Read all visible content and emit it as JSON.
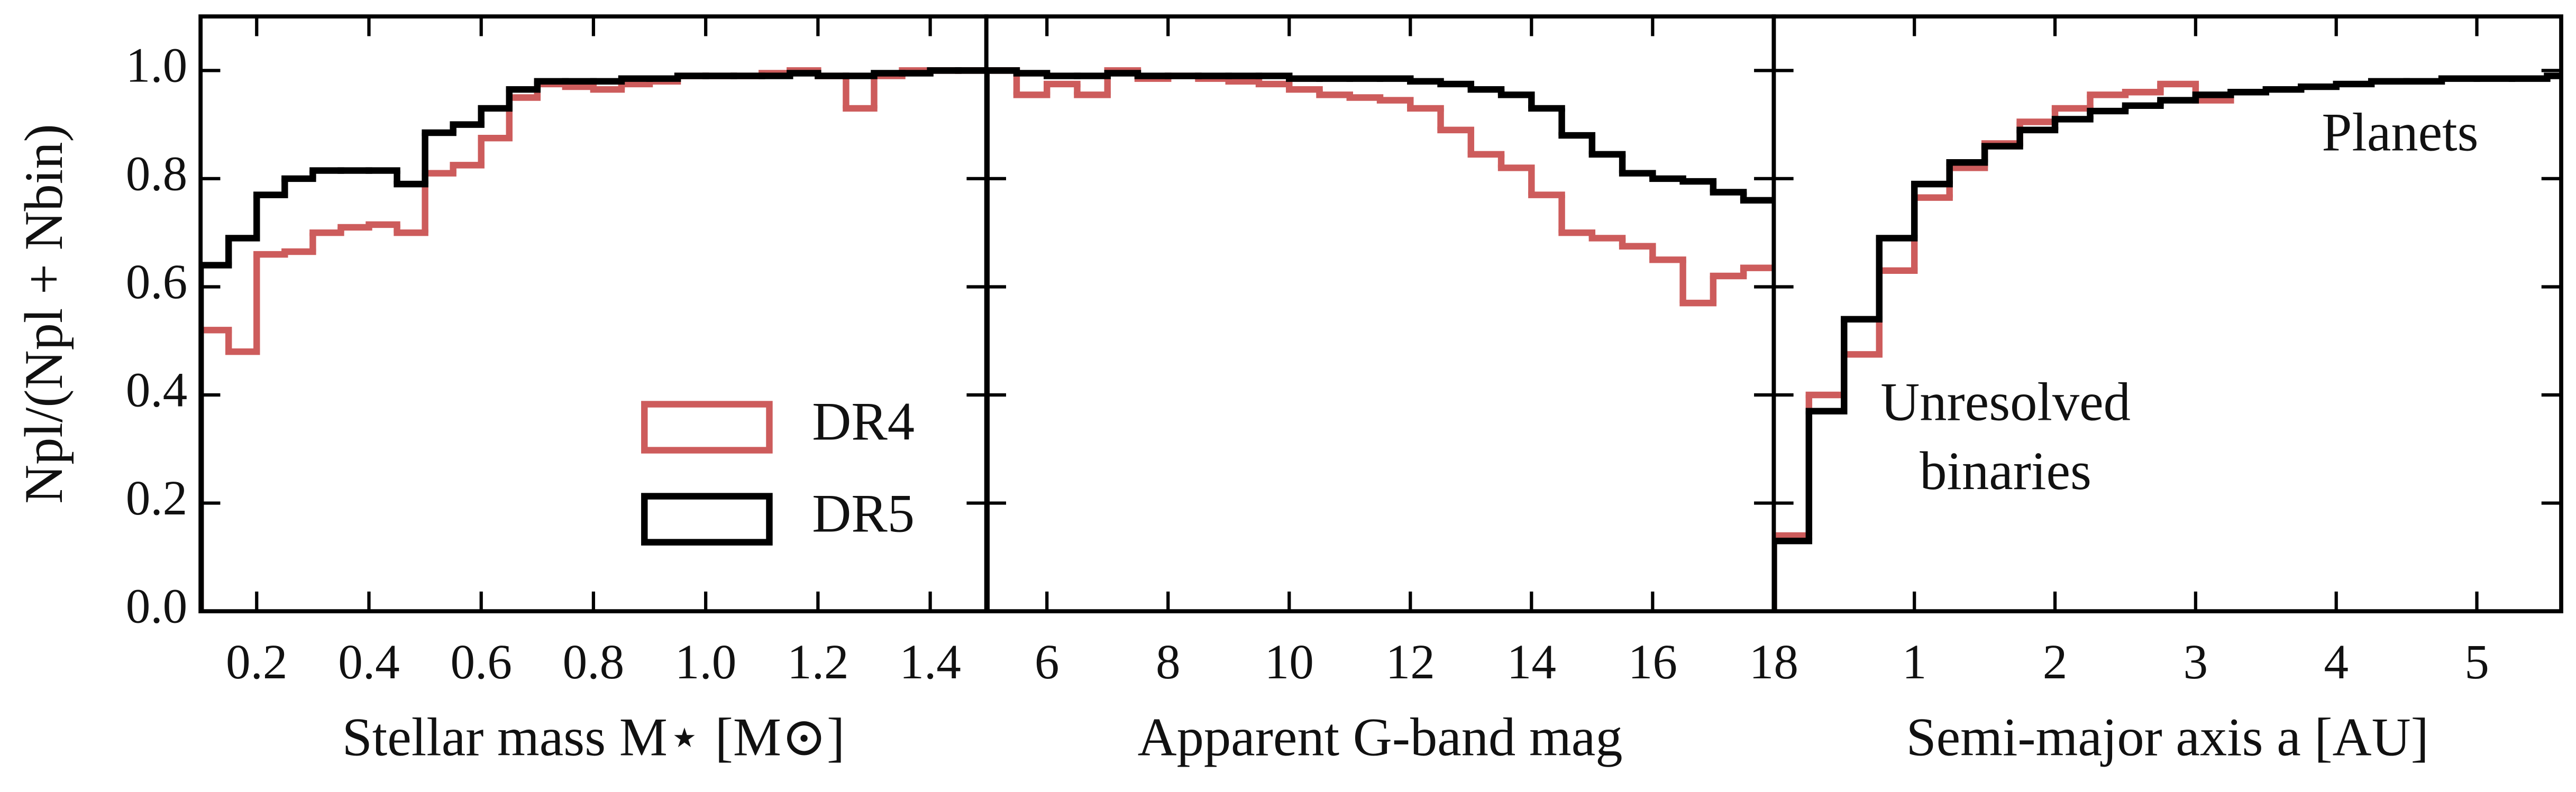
{
  "chart_data": [
    {
      "type": "histogram",
      "xlabel": "Stellar mass M⋆ [M⊙]",
      "ylabel": "Npl/(Npl + Nbin)",
      "xlim": [
        0.1,
        1.5
      ],
      "xticks": [
        0.2,
        0.4,
        0.6,
        0.8,
        {
          "value": 1,
          "label": "1.0"
        },
        1.2,
        1.4
      ],
      "ylim": [
        0,
        1.1
      ],
      "yticks": [
        {
          "value": 0,
          "label": "0.0"
        },
        0.2,
        0.4,
        0.6,
        0.8,
        {
          "value": 1,
          "label": "1.0"
        }
      ],
      "legend": "lower right",
      "series": [
        {
          "name": "DR4",
          "color": "#cd5c5c",
          "bins": [
            0.1,
            0.15,
            0.2,
            0.25,
            0.3,
            0.35,
            0.4,
            0.45,
            0.5,
            0.55,
            0.6,
            0.65,
            0.7,
            0.75,
            0.8,
            0.85,
            0.9,
            0.95,
            1.0,
            1.05,
            1.1,
            1.15,
            1.2,
            1.25,
            1.3,
            1.35,
            1.4,
            1.45,
            1.5
          ],
          "values": [
            0.52,
            0.48,
            0.66,
            0.665,
            0.7,
            0.71,
            0.715,
            0.7,
            0.81,
            0.825,
            0.875,
            0.95,
            0.975,
            0.97,
            0.965,
            0.975,
            0.98,
            0.99,
            0.99,
            0.99,
            0.995,
            1.0,
            0.99,
            0.93,
            0.99,
            1.0,
            1.0,
            1.0
          ]
        },
        {
          "name": "DR5",
          "color": "#000000",
          "bins": [
            0.1,
            0.15,
            0.2,
            0.25,
            0.3,
            0.35,
            0.4,
            0.45,
            0.5,
            0.55,
            0.6,
            0.65,
            0.7,
            0.75,
            0.8,
            0.85,
            0.9,
            0.95,
            1.0,
            1.05,
            1.1,
            1.15,
            1.2,
            1.25,
            1.3,
            1.35,
            1.4,
            1.45,
            1.5
          ],
          "values": [
            0.64,
            0.69,
            0.77,
            0.8,
            0.815,
            0.815,
            0.815,
            0.79,
            0.885,
            0.9,
            0.93,
            0.965,
            0.98,
            0.98,
            0.98,
            0.985,
            0.985,
            0.99,
            0.99,
            0.99,
            0.99,
            0.995,
            0.99,
            0.99,
            0.995,
            0.995,
            1.0,
            1.0
          ]
        }
      ]
    },
    {
      "type": "histogram",
      "xlabel": "Apparent G-band mag",
      "xlim": [
        5,
        18
      ],
      "xticks": [
        6,
        8,
        10,
        12,
        14,
        16,
        18
      ],
      "ylim": [
        0,
        1.1
      ],
      "yticks": [
        0,
        0.2,
        0.4,
        0.6,
        0.8,
        1
      ],
      "series": [
        {
          "name": "DR4",
          "color": "#cd5c5c",
          "bins": [
            5,
            5.5,
            6,
            6.5,
            7,
            7.5,
            8,
            8.5,
            9,
            9.5,
            10,
            10.5,
            11,
            11.5,
            12,
            12.5,
            13,
            13.5,
            14,
            14.5,
            15,
            15.5,
            16,
            16.5,
            17,
            17.5,
            18
          ],
          "values": [
            1.0,
            0.955,
            0.975,
            0.955,
            1.0,
            0.985,
            0.99,
            0.985,
            0.98,
            0.975,
            0.965,
            0.955,
            0.95,
            0.945,
            0.93,
            0.89,
            0.845,
            0.82,
            0.77,
            0.7,
            0.69,
            0.675,
            0.65,
            0.57,
            0.62,
            0.635
          ]
        },
        {
          "name": "DR5",
          "color": "#000000",
          "bins": [
            5,
            5.5,
            6,
            6.5,
            7,
            7.5,
            8,
            8.5,
            9,
            9.5,
            10,
            10.5,
            11,
            11.5,
            12,
            12.5,
            13,
            13.5,
            14,
            14.5,
            15,
            15.5,
            16,
            16.5,
            17,
            17.5,
            18
          ],
          "values": [
            1.0,
            0.995,
            0.99,
            0.99,
            0.995,
            0.99,
            0.99,
            0.99,
            0.99,
            0.99,
            0.985,
            0.985,
            0.985,
            0.985,
            0.98,
            0.975,
            0.965,
            0.955,
            0.93,
            0.88,
            0.845,
            0.81,
            0.8,
            0.795,
            0.775,
            0.76
          ]
        }
      ]
    },
    {
      "type": "histogram",
      "xlabel": "Semi-major axis a [AU]",
      "xlim": [
        0,
        5.6
      ],
      "xticks": [
        1,
        2,
        3,
        4,
        5
      ],
      "ylim": [
        0,
        1.1
      ],
      "yticks": [
        0,
        0.2,
        0.4,
        0.6,
        0.8,
        1
      ],
      "annotations": [
        "Planets",
        "Unresolved",
        "binaries"
      ],
      "series": [
        {
          "name": "DR4",
          "color": "#cd5c5c",
          "bins": [
            0,
            0.25,
            0.5,
            0.75,
            1,
            1.25,
            1.5,
            1.75,
            2,
            2.25,
            2.5,
            2.75,
            3,
            3.25
          ],
          "values": [
            0.14,
            0.4,
            0.475,
            0.63,
            0.765,
            0.82,
            0.865,
            0.905,
            0.93,
            0.955,
            0.96,
            0.975,
            0.945
          ]
        },
        {
          "name": "DR5",
          "color": "#000000",
          "bins": [
            0,
            0.25,
            0.5,
            0.75,
            1,
            1.25,
            1.5,
            1.75,
            2,
            2.25,
            2.5,
            2.75,
            3,
            3.25,
            3.5,
            3.75,
            4,
            4.25,
            4.5,
            4.75,
            5,
            5.25,
            5.5,
            5.75
          ],
          "values": [
            0.13,
            0.37,
            0.54,
            0.69,
            0.79,
            0.83,
            0.86,
            0.89,
            0.91,
            0.925,
            0.935,
            0.945,
            0.955,
            0.96,
            0.965,
            0.97,
            0.975,
            0.98,
            0.98,
            0.985,
            0.985,
            0.985,
            0.99
          ]
        }
      ]
    }
  ]
}
